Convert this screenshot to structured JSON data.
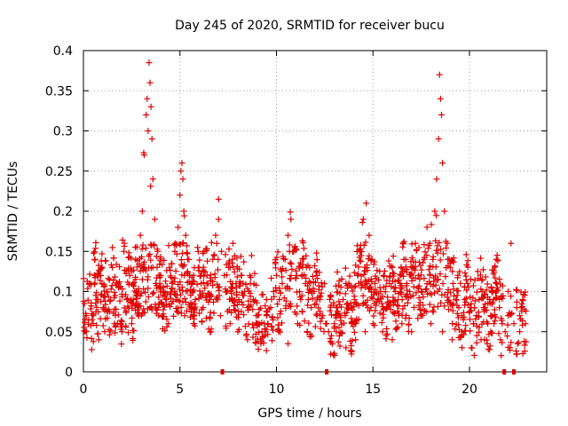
{
  "chart_data": {
    "type": "scatter",
    "title": "Day 245 of 2020, SRMTID for receiver bucu",
    "xlabel": "GPS time / hours",
    "ylabel": "SRMTID / TECUs",
    "xlim": [
      0,
      24
    ],
    "ylim": [
      0,
      0.4
    ],
    "xticks": [
      "0",
      "5",
      "10",
      "15",
      "20"
    ],
    "xtick_values": [
      0,
      5,
      10,
      15,
      20
    ],
    "yticks": [
      "0",
      "0.05",
      "0.1",
      "0.15",
      "0.2",
      "0.25",
      "0.3",
      "0.35",
      "0.4"
    ],
    "ytick_values": [
      0,
      0.05,
      0.1,
      0.15,
      0.2,
      0.25,
      0.3,
      0.35,
      0.4
    ],
    "grid": true,
    "marker": "+",
    "color": "#e00000",
    "series": [
      {
        "name": "SRMTID",
        "x": [
          0.05,
          0.15,
          0.3,
          0.45,
          0.6,
          0.75,
          0.9,
          1.05,
          1.2,
          1.35,
          1.5,
          1.65,
          1.8,
          1.95,
          2.1,
          2.25,
          2.4,
          2.55,
          2.7,
          2.85,
          2.95,
          3.05,
          3.15,
          3.25,
          3.3,
          3.35,
          3.4,
          3.45,
          3.5,
          3.55,
          3.6,
          3.7,
          3.85,
          4.0,
          4.15,
          4.3,
          4.45,
          4.6,
          4.75,
          4.9,
          5.0,
          5.05,
          5.1,
          5.15,
          5.2,
          5.3,
          5.4,
          5.5,
          5.65,
          5.8,
          5.95,
          6.1,
          6.25,
          6.4,
          6.55,
          6.7,
          6.85,
          7.0,
          7.15,
          7.3,
          7.45,
          7.6,
          7.75,
          7.9,
          8.05,
          8.2,
          8.35,
          8.5,
          8.65,
          8.8,
          8.95,
          9.1,
          9.25,
          9.4,
          9.55,
          9.7,
          9.85,
          10.0,
          10.15,
          10.3,
          10.45,
          10.6,
          10.75,
          10.9,
          11.05,
          11.2,
          11.35,
          11.5,
          11.65,
          11.8,
          11.95,
          12.1,
          12.25,
          12.4,
          12.55,
          12.7,
          12.85,
          13.0,
          13.15,
          13.3,
          13.45,
          13.6,
          13.75,
          13.9,
          14.05,
          14.2,
          14.35,
          14.5,
          14.65,
          14.8,
          14.95,
          15.1,
          15.25,
          15.4,
          15.55,
          15.7,
          15.85,
          16.0,
          16.15,
          16.3,
          16.45,
          16.6,
          16.75,
          16.9,
          17.05,
          17.2,
          17.35,
          17.5,
          17.65,
          17.8,
          17.95,
          18.1,
          18.2,
          18.3,
          18.4,
          18.45,
          18.5,
          18.55,
          18.6,
          18.7,
          18.85,
          19.0,
          19.15,
          19.3,
          19.45,
          19.6,
          19.75,
          19.9,
          20.05,
          20.2,
          20.35,
          20.5,
          20.65,
          20.8,
          20.95,
          21.1,
          21.25,
          21.4,
          21.55,
          21.7,
          21.85,
          22.0,
          22.15,
          22.3,
          22.45,
          22.6,
          22.75,
          22.9,
          0.1,
          0.5,
          0.8,
          1.1,
          1.6,
          2.0,
          2.5,
          3.0,
          3.45,
          3.9,
          4.4,
          4.8,
          5.25,
          5.7,
          6.2,
          6.6,
          7.1,
          7.6,
          8.0,
          8.5,
          9.0,
          9.5,
          10.1,
          10.6,
          11.1,
          11.6,
          12.1,
          12.6,
          13.1,
          13.6,
          14.1,
          14.6,
          15.0,
          15.5,
          16.0,
          16.5,
          17.0,
          17.5,
          18.0,
          18.6,
          19.1,
          19.6,
          20.1,
          20.6,
          21.1,
          21.6,
          22.1,
          22.6
        ],
        "y": [
          0.085,
          0.07,
          0.11,
          0.065,
          0.14,
          0.09,
          0.12,
          0.08,
          0.1,
          0.075,
          0.13,
          0.095,
          0.11,
          0.06,
          0.15,
          0.09,
          0.12,
          0.085,
          0.14,
          0.1,
          0.17,
          0.2,
          0.27,
          0.32,
          0.34,
          0.3,
          0.385,
          0.36,
          0.33,
          0.29,
          0.24,
          0.19,
          0.15,
          0.12,
          0.1,
          0.09,
          0.13,
          0.11,
          0.16,
          0.18,
          0.22,
          0.25,
          0.26,
          0.24,
          0.2,
          0.17,
          0.14,
          0.12,
          0.1,
          0.09,
          0.13,
          0.11,
          0.15,
          0.12,
          0.09,
          0.14,
          0.17,
          0.19,
          0.15,
          0.12,
          0.1,
          0.13,
          0.16,
          0.11,
          0.09,
          0.12,
          0.1,
          0.08,
          0.11,
          0.09,
          0.07,
          0.06,
          0.05,
          0.045,
          0.06,
          0.08,
          0.1,
          0.12,
          0.09,
          0.11,
          0.14,
          0.17,
          0.19,
          0.15,
          0.12,
          0.1,
          0.13,
          0.11,
          0.09,
          0.08,
          0.1,
          0.12,
          0.09,
          0.07,
          0.06,
          0.05,
          0.045,
          0.06,
          0.08,
          0.07,
          0.09,
          0.11,
          0.08,
          0.06,
          0.09,
          0.12,
          0.15,
          0.19,
          0.21,
          0.17,
          0.14,
          0.11,
          0.09,
          0.1,
          0.12,
          0.08,
          0.11,
          0.13,
          0.1,
          0.09,
          0.12,
          0.14,
          0.11,
          0.1,
          0.13,
          0.16,
          0.12,
          0.1,
          0.14,
          0.18,
          0.16,
          0.14,
          0.2,
          0.24,
          0.29,
          0.37,
          0.34,
          0.32,
          0.26,
          0.2,
          0.16,
          0.13,
          0.11,
          0.09,
          0.08,
          0.07,
          0.09,
          0.11,
          0.08,
          0.06,
          0.07,
          0.09,
          0.1,
          0.08,
          0.06,
          0.07,
          0.09,
          0.11,
          0.08,
          0.06,
          0.05,
          0.07,
          0.16,
          0.06,
          0.08,
          0.07,
          0.09,
          0.06,
          0.05,
          0.07,
          0.04,
          0.05,
          0.06,
          0.05,
          0.06,
          0.07,
          0.08,
          0.07,
          0.06,
          0.09,
          0.07,
          0.06,
          0.08,
          0.05,
          0.07,
          0.06,
          0.05,
          0.04,
          0.06,
          0.07,
          0.05,
          0.035,
          0.06,
          0.05,
          0.07,
          0.06,
          0.05,
          0.03,
          0.04,
          0.05,
          0.06,
          0.05,
          0.04,
          0.06,
          0.05,
          0.07,
          0.06,
          0.05,
          0.04,
          0.05,
          0.03,
          0.04,
          0.05,
          0.04,
          0.03,
          0.05
        ],
        "seed_scatter_points": 1400
      }
    ],
    "zero_markers_x": [
      7.2,
      12.6,
      21.8,
      22.3
    ]
  }
}
